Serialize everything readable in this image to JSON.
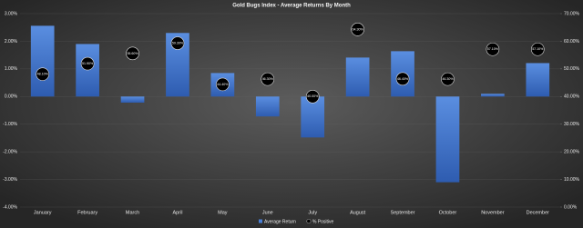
{
  "chart_data": {
    "type": "bar",
    "title": "Gold Bugs Index - Average Returns By Month",
    "categories": [
      "January",
      "February",
      "March",
      "April",
      "May",
      "June",
      "July",
      "August",
      "September",
      "October",
      "November",
      "December"
    ],
    "series": [
      {
        "name": "Average Return",
        "type": "bar",
        "color": "#4a7fd6",
        "axis": "y",
        "values": [
          2.56,
          1.9,
          -0.22,
          2.3,
          0.85,
          -0.72,
          -1.48,
          1.41,
          1.64,
          -3.1,
          0.1,
          1.21
        ]
      },
      {
        "name": "% Positive",
        "type": "scatter",
        "color": "#000000",
        "axis": "y2",
        "values": [
          48.1,
          51.9,
          55.6,
          59.3,
          44.4,
          46.3,
          40.0,
          64.3,
          46.4,
          46.3,
          57.1,
          57.1
        ],
        "value_labels": [
          "48.10%",
          "51.90%",
          "55.60%",
          "59.30%",
          "44.40%",
          "46.30%",
          "40.00%",
          "64.30%",
          "46.40%",
          "46.30%",
          "57.10%",
          "57.10%"
        ]
      }
    ],
    "ylim": [
      -4,
      3
    ],
    "yticks": [
      {
        "value": 3,
        "label": "3.00%"
      },
      {
        "value": 2,
        "label": "2.00%"
      },
      {
        "value": 1,
        "label": "1.00%"
      },
      {
        "value": 0,
        "label": "0.00%"
      },
      {
        "value": -1,
        "label": "-1.00%"
      },
      {
        "value": -2,
        "label": "-2.00%"
      },
      {
        "value": -3,
        "label": "-3.00%"
      },
      {
        "value": -4,
        "label": "-4.00%"
      }
    ],
    "y2lim": [
      0,
      70
    ],
    "y2ticks": [
      {
        "value": 70,
        "label": "70.00%"
      },
      {
        "value": 60,
        "label": "60.00%"
      },
      {
        "value": 50,
        "label": "50.00%"
      },
      {
        "value": 40,
        "label": "40.00%"
      },
      {
        "value": 30,
        "label": "30.00%"
      },
      {
        "value": 20,
        "label": "20.00%"
      },
      {
        "value": 10,
        "label": "10.00%"
      },
      {
        "value": 0,
        "label": "0.00%"
      }
    ],
    "grid": true
  }
}
